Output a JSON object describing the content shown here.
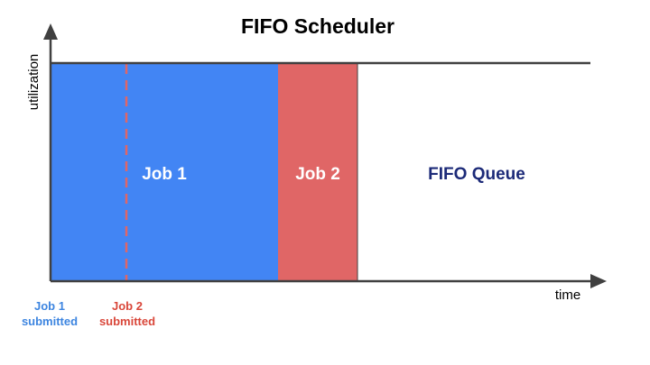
{
  "title": "FIFO Scheduler",
  "axes": {
    "y_label": "utilization",
    "x_label": "time"
  },
  "blocks": {
    "job1": {
      "label": "Job 1",
      "fill": "#4285f4",
      "text_color": "#ffffff"
    },
    "job2": {
      "label": "Job 2",
      "fill": "#e06666",
      "text_color": "#ffffff"
    },
    "queue": {
      "label": "FIFO Queue",
      "fill": "#ffffff",
      "text_color": "#1c2a78"
    }
  },
  "markers": {
    "job1_submitted": {
      "line1": "Job 1",
      "line2": "submitted",
      "color": "#3d85e0"
    },
    "job2_submitted": {
      "line1": "Job 2",
      "line2": "submitted",
      "color": "#d9473a"
    }
  },
  "colors": {
    "axis": "#404040",
    "title": "#000000"
  }
}
